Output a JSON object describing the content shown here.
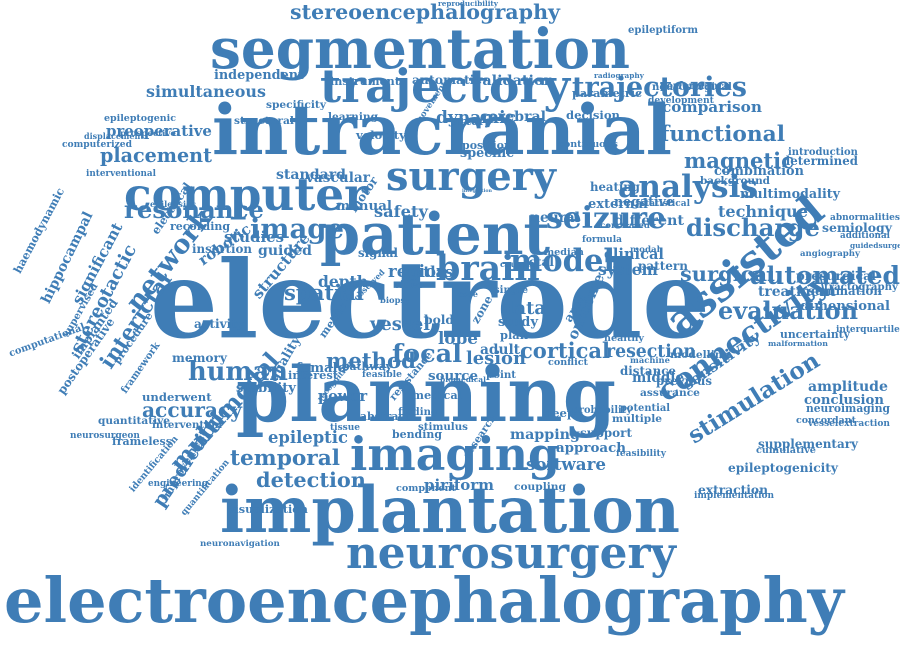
{
  "colors": {
    "primary": "#3f7db6",
    "background": "#ffffff"
  },
  "words": [
    "stereoencephalography",
    "reproducibility",
    "segmentation",
    "epileptiform",
    "trajectory",
    "trajectories",
    "independent",
    "simultaneous",
    "intracranial",
    "comparison",
    "functional",
    "preoperative",
    "placement",
    "surgery",
    "analysis",
    "magnetic",
    "computer",
    "resonance",
    "patient",
    "seizure",
    "combination",
    "multimodality",
    "technique",
    "discharge",
    "image",
    "automated",
    "haemodynamic",
    "hippocampal",
    "significant",
    "stereotactic",
    "network",
    "electrode",
    "brain",
    "model",
    "surgical",
    "evaluation",
    "treatment",
    "presurgical",
    "human",
    "accuracy",
    "interictal",
    "method",
    "focal",
    "cortical",
    "resection",
    "assisted",
    "connectivity",
    "planning",
    "stimulation",
    "multimodal",
    "imaging",
    "temporal",
    "epileptic",
    "detection",
    "implantation",
    "neurosurgery",
    "electroencephalography",
    "prediction",
    "supplementary",
    "epileptogenicity",
    "implementation",
    "validation",
    "instrument",
    "dynamic",
    "cerebral",
    "decision",
    "movement",
    "learning",
    "structural",
    "specificity",
    "epileptogenic",
    "interventional",
    "computational",
    "postoperative",
    "quantification",
    "neuronavigation",
    "vessel",
    "adult",
    "lesion",
    "source",
    "point",
    "data",
    "study",
    "plan",
    "activity",
    "memory",
    "frameless",
    "quantitative",
    "neurosurgeon",
    "software",
    "approach",
    "support",
    "mapping",
    "bending",
    "piriform",
    "coupling",
    "component",
    "extraction",
    "amplitude",
    "conclusion",
    "neuroimaging",
    "vesselextraction",
    "uncertainty",
    "interquartile",
    "dimensional",
    "summation",
    "tractography",
    "introduction",
    "determined",
    "cumulative",
    "concordant",
    "malformation",
    "modelling",
    "distance",
    "previous",
    "assurance",
    "sensitivity",
    "potential",
    "feasibility",
    "outcome",
    "system",
    "clinical",
    "region",
    "spatial",
    "structure",
    "depth",
    "robotic",
    "insertion",
    "studies",
    "guided",
    "safety",
    "neural",
    "heating",
    "external",
    "different",
    "negative",
    "parametric",
    "automatic",
    "neurosurgical",
    "development",
    "performance",
    "background",
    "semiology",
    "abnormalities",
    "additional",
    "radiography",
    "angiography",
    "guidedsurgery",
    "metric",
    "zone",
    "lobe",
    "bold",
    "atlas",
    "signal",
    "motor",
    "manual",
    "vascular",
    "standard",
    "specific",
    "position",
    "continuous",
    "statistical",
    "computerized",
    "displacement",
    "prospective",
    "epilepsies",
    "electrical",
    "recording",
    "ictal",
    "video",
    "biopsy",
    "median",
    "formula",
    "correlated",
    "pattern",
    "modal",
    "area",
    "case",
    "single",
    "causal",
    "integration",
    "supervised",
    "implanted",
    "procedure",
    "framework",
    "underwent",
    "intervention",
    "identification",
    "improvement",
    "engineering",
    "visualization",
    "stability",
    "quality",
    "interest",
    "female",
    "observed",
    "power",
    "feasible",
    "finding",
    "medical",
    "biomedical",
    "probability",
    "multiple",
    "middle",
    "conflict",
    "healthy",
    "machine",
    "research",
    "recognition",
    "resistance",
    "pathway",
    "velocity",
    "artery",
    "abstract",
    "stimulus",
    "deep",
    "tissue"
  ]
}
